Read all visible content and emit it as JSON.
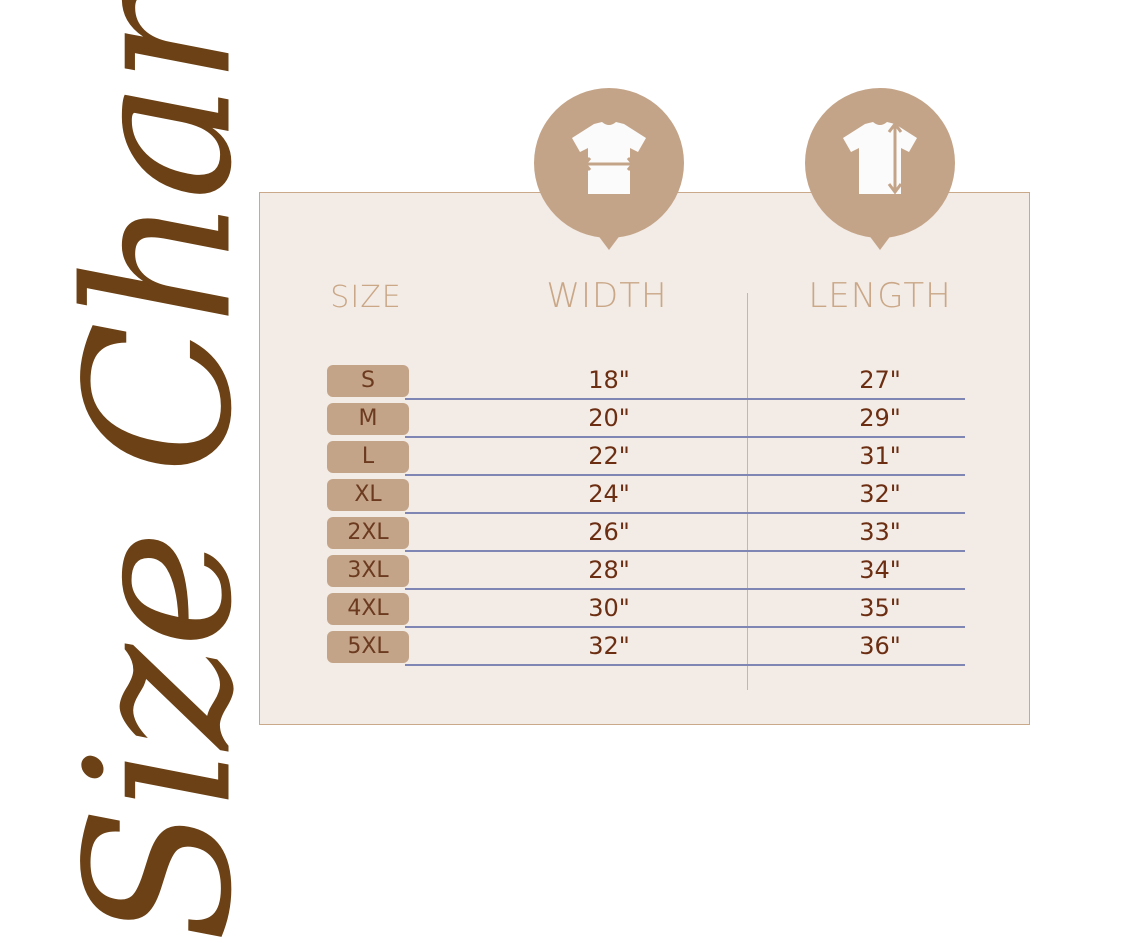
{
  "title": "Size Chart",
  "headers": {
    "size": "SIZE",
    "width": "WIDTH",
    "length": "LENGTH"
  },
  "icons": {
    "width": "tshirt-width-icon",
    "length": "tshirt-length-icon"
  },
  "colors": {
    "title": "#6b4115",
    "accent": "#c4a488",
    "panel": "#f3ebe5",
    "values": "#6b2e12",
    "rule": "#7f86b3"
  },
  "chart_data": {
    "type": "table",
    "columns": [
      "SIZE",
      "WIDTH",
      "LENGTH"
    ],
    "rows": [
      {
        "size": "S",
        "width": "18\"",
        "length": "27\""
      },
      {
        "size": "M",
        "width": "20\"",
        "length": "29\""
      },
      {
        "size": "L",
        "width": "22\"",
        "length": "31\""
      },
      {
        "size": "XL",
        "width": "24\"",
        "length": "32\""
      },
      {
        "size": "2XL",
        "width": "26\"",
        "length": "33\""
      },
      {
        "size": "3XL",
        "width": "28\"",
        "length": "34\""
      },
      {
        "size": "4XL",
        "width": "30\"",
        "length": "35\""
      },
      {
        "size": "5XL",
        "width": "32\"",
        "length": "36\""
      }
    ]
  }
}
